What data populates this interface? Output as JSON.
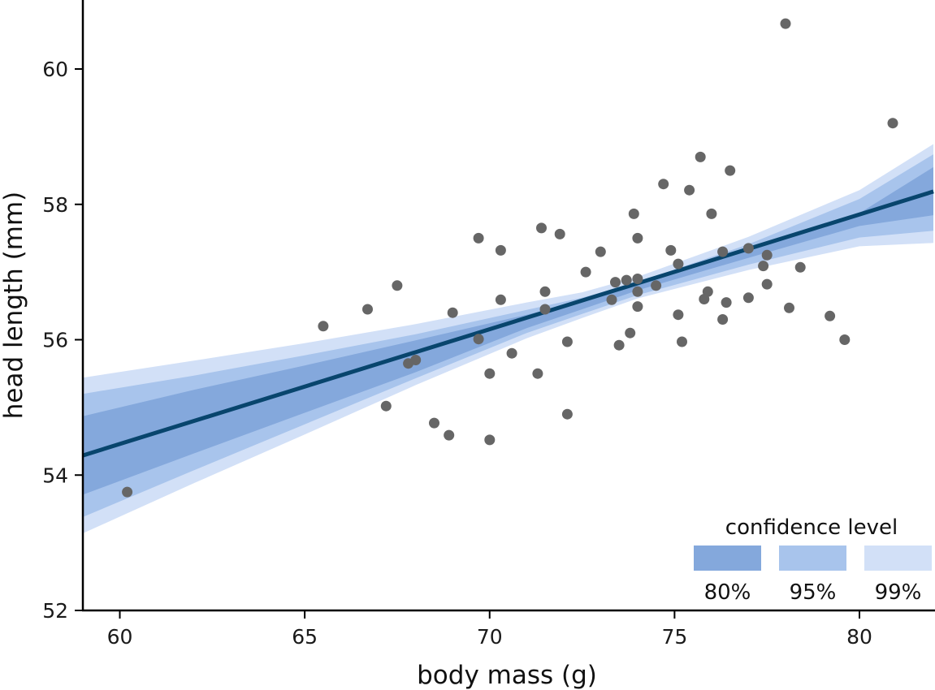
{
  "chart_data": {
    "type": "scatter",
    "xlabel": "body mass (g)",
    "ylabel": "head length (mm)",
    "xlim": [
      59,
      82
    ],
    "ylim": [
      52,
      61
    ],
    "x_ticks": [
      60,
      65,
      70,
      75,
      80
    ],
    "y_ticks": [
      52,
      54,
      56,
      58,
      60
    ],
    "grid": false,
    "point_color": "#666666",
    "line_color": "#08456d",
    "points": [
      [
        60.2,
        53.75
      ],
      [
        65.5,
        56.2
      ],
      [
        66.7,
        56.45
      ],
      [
        67.2,
        55.02
      ],
      [
        67.5,
        56.8
      ],
      [
        67.8,
        55.65
      ],
      [
        68.0,
        55.7
      ],
      [
        68.5,
        54.77
      ],
      [
        68.9,
        54.59
      ],
      [
        69.0,
        56.4
      ],
      [
        69.7,
        57.5
      ],
      [
        69.7,
        56.01
      ],
      [
        70.0,
        54.52
      ],
      [
        70.0,
        55.5
      ],
      [
        70.3,
        57.32
      ],
      [
        70.3,
        56.59
      ],
      [
        70.6,
        55.8
      ],
      [
        71.3,
        55.5
      ],
      [
        71.4,
        57.65
      ],
      [
        71.5,
        56.71
      ],
      [
        71.5,
        56.45
      ],
      [
        71.9,
        57.56
      ],
      [
        72.1,
        55.97
      ],
      [
        72.1,
        54.9
      ],
      [
        72.6,
        57.0
      ],
      [
        73.0,
        57.3
      ],
      [
        73.3,
        56.59
      ],
      [
        73.4,
        56.85
      ],
      [
        73.5,
        55.92
      ],
      [
        73.7,
        56.88
      ],
      [
        73.8,
        56.1
      ],
      [
        73.9,
        57.86
      ],
      [
        74.0,
        56.49
      ],
      [
        74.0,
        56.71
      ],
      [
        74.0,
        57.5
      ],
      [
        74.0,
        56.9
      ],
      [
        74.5,
        56.8
      ],
      [
        74.7,
        58.3
      ],
      [
        74.9,
        57.32
      ],
      [
        75.1,
        57.12
      ],
      [
        75.1,
        56.37
      ],
      [
        75.2,
        55.97
      ],
      [
        75.4,
        58.21
      ],
      [
        75.7,
        58.7
      ],
      [
        75.8,
        56.6
      ],
      [
        75.9,
        56.71
      ],
      [
        76.0,
        57.86
      ],
      [
        76.3,
        56.3
      ],
      [
        76.3,
        57.3
      ],
      [
        76.4,
        56.55
      ],
      [
        76.5,
        58.5
      ],
      [
        77.0,
        57.35
      ],
      [
        77.0,
        56.62
      ],
      [
        77.4,
        57.09
      ],
      [
        77.5,
        56.82
      ],
      [
        77.5,
        57.25
      ],
      [
        78.0,
        60.67
      ],
      [
        78.1,
        56.47
      ],
      [
        78.4,
        57.07
      ],
      [
        79.2,
        56.35
      ],
      [
        79.6,
        56.0
      ],
      [
        80.9,
        59.2
      ]
    ],
    "regression_line": {
      "x": [
        59,
        82
      ],
      "y": [
        54.29,
        58.19
      ]
    },
    "confidence_bands": [
      {
        "level": "99%",
        "color": "#d2e0f7",
        "x": [
          59,
          62,
          65,
          68,
          71,
          72.5,
          74,
          77,
          80,
          82
        ],
        "lower": [
          53.14,
          53.88,
          54.6,
          55.33,
          56.02,
          56.32,
          56.61,
          57.03,
          57.38,
          57.43
        ],
        "upper": [
          55.44,
          55.69,
          55.95,
          56.23,
          56.55,
          56.7,
          56.93,
          57.52,
          58.21,
          58.89
        ]
      },
      {
        "level": "95%",
        "color": "#a8c4ec",
        "x": [
          59,
          62,
          65,
          68,
          71,
          72.5,
          74,
          77,
          80,
          82
        ],
        "lower": [
          53.38,
          54.07,
          54.75,
          55.43,
          56.1,
          56.38,
          56.66,
          57.11,
          57.51,
          57.61
        ],
        "upper": [
          55.2,
          55.47,
          55.77,
          56.08,
          56.44,
          56.62,
          56.85,
          57.41,
          58.08,
          58.74
        ]
      },
      {
        "level": "80%",
        "color": "#84a8dc",
        "x": [
          59,
          62,
          65,
          68,
          71,
          72.5,
          74,
          77,
          80,
          82
        ],
        "lower": [
          53.71,
          54.32,
          54.92,
          55.52,
          56.17,
          56.45,
          56.73,
          57.21,
          57.68,
          57.84
        ],
        "upper": [
          54.87,
          55.26,
          55.62,
          55.99,
          56.37,
          56.57,
          56.8,
          57.31,
          57.87,
          58.55
        ]
      }
    ],
    "legend": {
      "title": "confidence level",
      "position": "bottom-right",
      "items": [
        {
          "label": "80%",
          "color": "#84a8dc"
        },
        {
          "label": "95%",
          "color": "#a8c4ec"
        },
        {
          "label": "99%",
          "color": "#d2e0f7"
        }
      ]
    }
  }
}
